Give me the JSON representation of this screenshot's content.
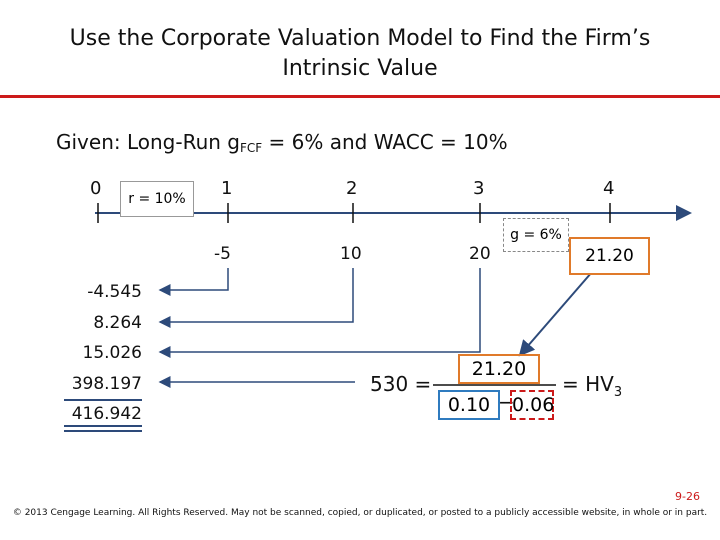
{
  "title_line1": "Use the Corporate Valuation Model to Find the Firm’s",
  "title_line2": "Intrinsic Value",
  "given": {
    "prefix": "Given:  Long-Run g",
    "sub": "FCF",
    "suffix": " = 6% and WACC = 10%"
  },
  "timeline": {
    "periods": [
      "0",
      "1",
      "2",
      "3",
      "4"
    ],
    "rate_label": "r = 10%"
  },
  "cash_flows": [
    "-5",
    "10",
    "20",
    "21.20"
  ],
  "growth_label": "g = 6%",
  "present_values": [
    "-4.545",
    "8.264",
    "15.026",
    "398.197",
    "416.942"
  ],
  "equation": {
    "lhs": "530 =",
    "numerator": "21.20",
    "denom_a": "0.10",
    "minus": "−",
    "denom_b": "0.06",
    "rhs": "= HV",
    "rhs_sub": "3"
  },
  "slide_number": "9-26",
  "copyright": "© 2013 Cengage Learning. All Rights Reserved. May not be scanned, copied, or duplicated, or posted to a publicly accessible website, in whole or in part.",
  "colors": {
    "accent": "#cc1a1a",
    "orange": "#e07a2a",
    "blue": "#2f7bbf",
    "arrow": "#2d4a7a"
  }
}
